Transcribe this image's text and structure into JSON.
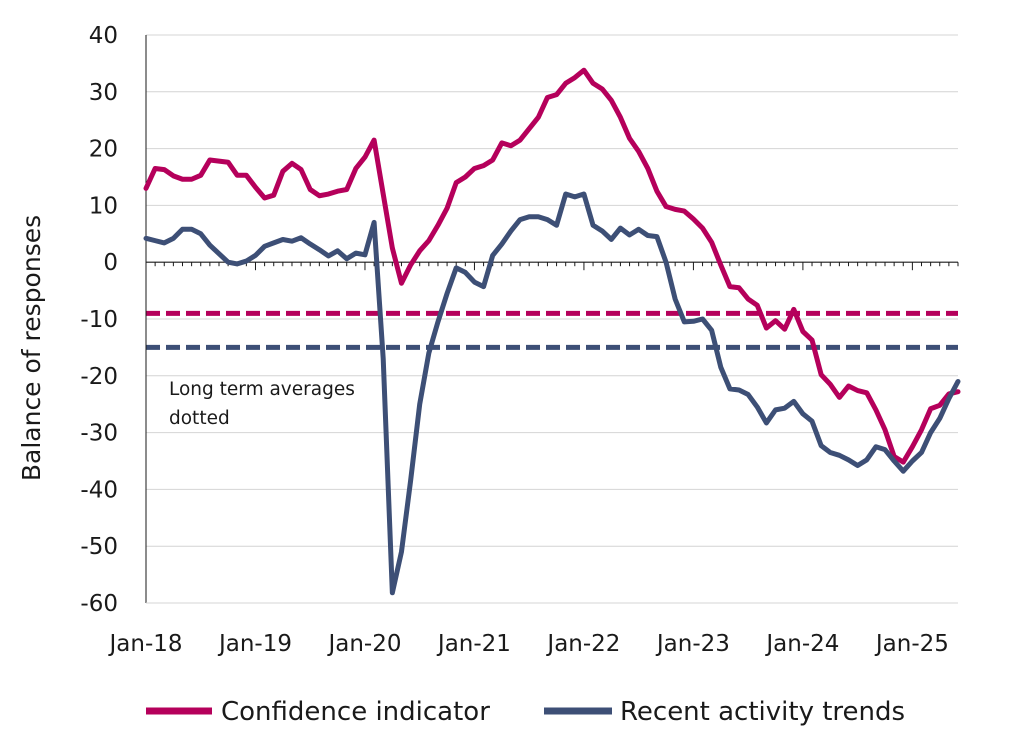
{
  "chart_data": {
    "type": "line",
    "ylabel": "Balance of responses",
    "ylim": [
      -60,
      40
    ],
    "yticks": [
      40,
      30,
      20,
      10,
      0,
      -10,
      -20,
      -30,
      -40,
      -50,
      -60
    ],
    "xlim": [
      "2018-01",
      "2025-06"
    ],
    "xticks": [
      {
        "x": "2018-01",
        "label": "Jan-18"
      },
      {
        "x": "2019-01",
        "label": "Jan-19"
      },
      {
        "x": "2020-01",
        "label": "Jan-20"
      },
      {
        "x": "2021-01",
        "label": "Jan-21"
      },
      {
        "x": "2022-01",
        "label": "Jan-22"
      },
      {
        "x": "2023-01",
        "label": "Jan-23"
      },
      {
        "x": "2024-01",
        "label": "Jan-24"
      },
      {
        "x": "2025-01",
        "label": "Jan-25"
      }
    ],
    "grid": "horizontal",
    "legend_position": "bottom",
    "annotation": [
      "Long term averages",
      "dotted"
    ],
    "series": [
      {
        "name": "Confidence indicator",
        "color": "#b5005b",
        "long_term_average": -9,
        "points": [
          [
            "2018-01",
            13
          ],
          [
            "2018-02",
            16.5
          ],
          [
            "2018-03",
            16.3
          ],
          [
            "2018-04",
            15.2
          ],
          [
            "2018-05",
            14.6
          ],
          [
            "2018-06",
            14.6
          ],
          [
            "2018-07",
            15.3
          ],
          [
            "2018-08",
            18
          ],
          [
            "2018-09",
            17.8
          ],
          [
            "2018-10",
            17.6
          ],
          [
            "2018-11",
            15.3
          ],
          [
            "2018-12",
            15.3
          ],
          [
            "2019-01",
            13.2
          ],
          [
            "2019-02",
            11.3
          ],
          [
            "2019-03",
            11.8
          ],
          [
            "2019-04",
            16
          ],
          [
            "2019-05",
            17.4
          ],
          [
            "2019-06",
            16.3
          ],
          [
            "2019-07",
            12.8
          ],
          [
            "2019-08",
            11.7
          ],
          [
            "2019-09",
            12
          ],
          [
            "2019-10",
            12.5
          ],
          [
            "2019-11",
            12.8
          ],
          [
            "2019-12",
            16.5
          ],
          [
            "2020-01",
            18.5
          ],
          [
            "2020-02",
            21.5
          ],
          [
            "2020-03",
            12
          ],
          [
            "2020-04",
            2.5
          ],
          [
            "2020-05",
            -3.7
          ],
          [
            "2020-06",
            -0.5
          ],
          [
            "2020-07",
            2
          ],
          [
            "2020-08",
            3.8
          ],
          [
            "2020-09",
            6.5
          ],
          [
            "2020-10",
            9.5
          ],
          [
            "2020-11",
            14
          ],
          [
            "2020-12",
            15
          ],
          [
            "2021-01",
            16.5
          ],
          [
            "2021-02",
            17
          ],
          [
            "2021-03",
            18
          ],
          [
            "2021-04",
            21
          ],
          [
            "2021-05",
            20.5
          ],
          [
            "2021-06",
            21.5
          ],
          [
            "2021-07",
            23.5
          ],
          [
            "2021-08",
            25.5
          ],
          [
            "2021-09",
            29
          ],
          [
            "2021-10",
            29.5
          ],
          [
            "2021-11",
            31.5
          ],
          [
            "2021-12",
            32.5
          ],
          [
            "2022-01",
            33.8
          ],
          [
            "2022-02",
            31.5
          ],
          [
            "2022-03",
            30.5
          ],
          [
            "2022-04",
            28.5
          ],
          [
            "2022-05",
            25.5
          ],
          [
            "2022-06",
            21.8
          ],
          [
            "2022-07",
            19.5
          ],
          [
            "2022-08",
            16.5
          ],
          [
            "2022-09",
            12.5
          ],
          [
            "2022-10",
            9.8
          ],
          [
            "2022-11",
            9.3
          ],
          [
            "2022-12",
            9
          ],
          [
            "2023-01",
            7.6
          ],
          [
            "2023-02",
            6
          ],
          [
            "2023-03",
            3.5
          ],
          [
            "2023-04",
            -0.5
          ],
          [
            "2023-05",
            -4.3
          ],
          [
            "2023-06",
            -4.5
          ],
          [
            "2023-07",
            -6.5
          ],
          [
            "2023-08",
            -7.6
          ],
          [
            "2023-09",
            -11.6
          ],
          [
            "2023-10",
            -10.3
          ],
          [
            "2023-11",
            -11.8
          ],
          [
            "2023-12",
            -8.3
          ],
          [
            "2024-01",
            -12.2
          ],
          [
            "2024-02",
            -13.7
          ],
          [
            "2024-03",
            -19.8
          ],
          [
            "2024-04",
            -21.5
          ],
          [
            "2024-05",
            -23.8
          ],
          [
            "2024-06",
            -21.8
          ],
          [
            "2024-07",
            -22.6
          ],
          [
            "2024-08",
            -23
          ],
          [
            "2024-09",
            -26
          ],
          [
            "2024-10",
            -29.5
          ],
          [
            "2024-11",
            -34.2
          ],
          [
            "2024-12",
            -35.2
          ],
          [
            "2025-01",
            -32.5
          ],
          [
            "2025-02",
            -29.5
          ],
          [
            "2025-03",
            -25.8
          ],
          [
            "2025-04",
            -25.2
          ],
          [
            "2025-05",
            -23.2
          ],
          [
            "2025-06",
            -22.8
          ]
        ]
      },
      {
        "name": "Recent activity trends",
        "color": "#3d4f76",
        "long_term_average": -15,
        "points": [
          [
            "2018-01",
            4.2
          ],
          [
            "2018-02",
            3.8
          ],
          [
            "2018-03",
            3.4
          ],
          [
            "2018-04",
            4.2
          ],
          [
            "2018-05",
            5.8
          ],
          [
            "2018-06",
            5.8
          ],
          [
            "2018-07",
            5
          ],
          [
            "2018-08",
            3
          ],
          [
            "2018-09",
            1.5
          ],
          [
            "2018-10",
            0
          ],
          [
            "2018-11",
            -0.3
          ],
          [
            "2018-12",
            0.2
          ],
          [
            "2019-01",
            1.2
          ],
          [
            "2019-02",
            2.8
          ],
          [
            "2019-03",
            3.4
          ],
          [
            "2019-04",
            4
          ],
          [
            "2019-05",
            3.7
          ],
          [
            "2019-06",
            4.3
          ],
          [
            "2019-07",
            3.2
          ],
          [
            "2019-08",
            2.2
          ],
          [
            "2019-09",
            1.1
          ],
          [
            "2019-10",
            2
          ],
          [
            "2019-11",
            0.6
          ],
          [
            "2019-12",
            1.6
          ],
          [
            "2020-01",
            1.3
          ],
          [
            "2020-02",
            7
          ],
          [
            "2020-03",
            -17
          ],
          [
            "2020-04",
            -58.2
          ],
          [
            "2020-05",
            -51
          ],
          [
            "2020-06",
            -38.5
          ],
          [
            "2020-07",
            -25
          ],
          [
            "2020-08",
            -16
          ],
          [
            "2020-09",
            -10.5
          ],
          [
            "2020-10",
            -5.5
          ],
          [
            "2020-11",
            -1
          ],
          [
            "2020-12",
            -1.8
          ],
          [
            "2021-01",
            -3.5
          ],
          [
            "2021-02",
            -4.3
          ],
          [
            "2021-03",
            1.2
          ],
          [
            "2021-04",
            3.2
          ],
          [
            "2021-05",
            5.5
          ],
          [
            "2021-06",
            7.5
          ],
          [
            "2021-07",
            8
          ],
          [
            "2021-08",
            8
          ],
          [
            "2021-09",
            7.5
          ],
          [
            "2021-10",
            6.5
          ],
          [
            "2021-11",
            12
          ],
          [
            "2021-12",
            11.5
          ],
          [
            "2022-01",
            12
          ],
          [
            "2022-02",
            6.5
          ],
          [
            "2022-03",
            5.5
          ],
          [
            "2022-04",
            4
          ],
          [
            "2022-05",
            6
          ],
          [
            "2022-06",
            4.8
          ],
          [
            "2022-07",
            5.8
          ],
          [
            "2022-08",
            4.7
          ],
          [
            "2022-09",
            4.5
          ],
          [
            "2022-10",
            0
          ],
          [
            "2022-11",
            -6.5
          ],
          [
            "2022-12",
            -10.5
          ],
          [
            "2023-01",
            -10.4
          ],
          [
            "2023-02",
            -10
          ],
          [
            "2023-03",
            -12
          ],
          [
            "2023-04",
            -18.5
          ],
          [
            "2023-05",
            -22.3
          ],
          [
            "2023-06",
            -22.5
          ],
          [
            "2023-07",
            -23.3
          ],
          [
            "2023-08",
            -25.5
          ],
          [
            "2023-09",
            -28.3
          ],
          [
            "2023-10",
            -26
          ],
          [
            "2023-11",
            -25.7
          ],
          [
            "2023-12",
            -24.5
          ],
          [
            "2024-01",
            -26.7
          ],
          [
            "2024-02",
            -28
          ],
          [
            "2024-03",
            -32.3
          ],
          [
            "2024-04",
            -33.5
          ],
          [
            "2024-05",
            -34
          ],
          [
            "2024-06",
            -34.8
          ],
          [
            "2024-07",
            -35.8
          ],
          [
            "2024-08",
            -34.8
          ],
          [
            "2024-09",
            -32.5
          ],
          [
            "2024-10",
            -33
          ],
          [
            "2024-11",
            -35
          ],
          [
            "2024-12",
            -36.8
          ],
          [
            "2025-01",
            -35
          ],
          [
            "2025-02",
            -33.5
          ],
          [
            "2025-03",
            -30
          ],
          [
            "2025-04",
            -27.5
          ],
          [
            "2025-05",
            -24
          ],
          [
            "2025-06",
            -21
          ]
        ]
      }
    ]
  }
}
